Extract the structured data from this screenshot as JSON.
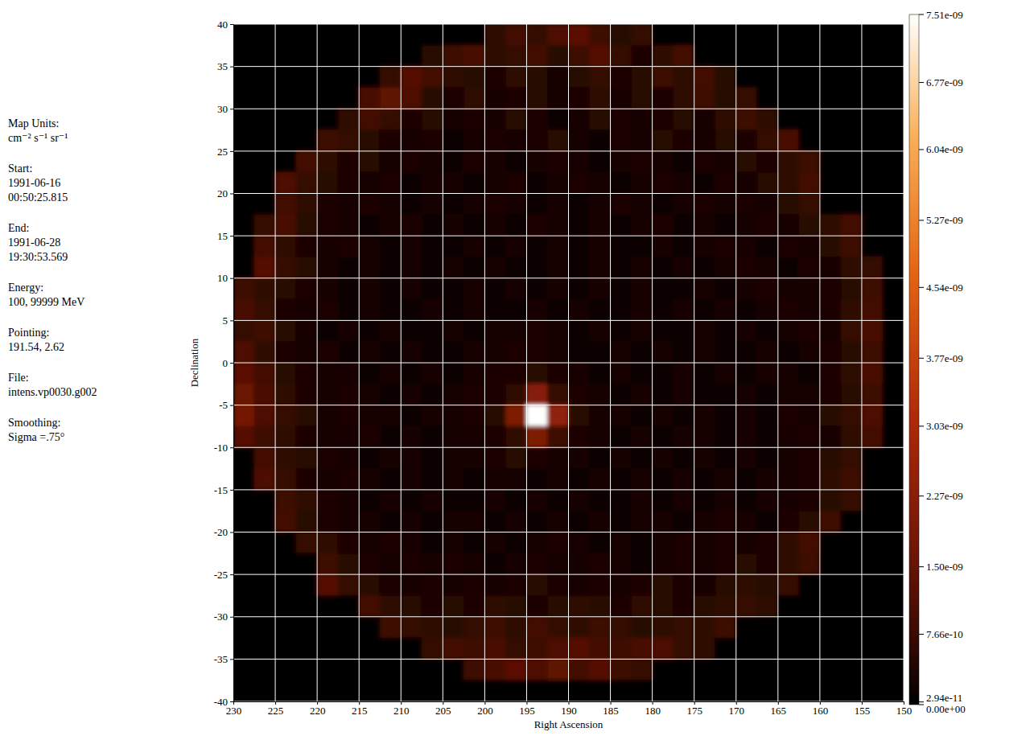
{
  "chart_data": {
    "type": "heatmap",
    "xlabel": "Right Ascension",
    "ylabel": "Declination",
    "xlim": [
      230,
      150
    ],
    "ylim": [
      -40,
      40
    ],
    "xticks": [
      230,
      225,
      220,
      215,
      210,
      205,
      200,
      195,
      190,
      185,
      180,
      175,
      170,
      165,
      160,
      155,
      150
    ],
    "yticks": [
      -40,
      -35,
      -30,
      -25,
      -20,
      -15,
      -10,
      -5,
      0,
      5,
      10,
      15,
      20,
      25,
      30,
      35,
      40
    ],
    "grid": true,
    "x": [
      228.75,
      226.25,
      223.75,
      221.25,
      218.75,
      216.25,
      213.75,
      211.25,
      208.75,
      206.25,
      203.75,
      201.25,
      198.75,
      196.25,
      193.75,
      191.25,
      188.75,
      186.25,
      183.75,
      181.25,
      178.75,
      176.25,
      173.75,
      171.25,
      168.75,
      166.25,
      163.75,
      161.25,
      158.75,
      156.25,
      153.75,
      151.25
    ],
    "y": [
      38.75,
      36.25,
      33.75,
      31.25,
      28.75,
      26.25,
      23.75,
      21.25,
      18.75,
      16.25,
      13.75,
      11.25,
      8.75,
      6.25,
      3.75,
      1.25,
      -1.25,
      -3.75,
      -6.25,
      -8.75,
      -11.25,
      -13.75,
      -16.25,
      -18.75,
      -21.25,
      -23.75,
      -26.25,
      -28.75,
      -31.25,
      -33.75,
      -36.25,
      -38.75
    ],
    "values": [
      [
        0,
        0,
        0,
        0,
        0,
        0,
        0,
        0,
        0,
        0,
        0,
        0,
        6e-10,
        9e-10,
        7e-10,
        1.1e-09,
        1.3e-09,
        8e-10,
        5e-10,
        7e-10,
        0,
        0,
        0,
        0,
        0,
        0,
        0,
        0,
        0,
        0,
        0,
        0
      ],
      [
        0,
        0,
        0,
        0,
        0,
        0,
        0,
        0,
        0,
        5e-10,
        8e-10,
        1e-09,
        6e-10,
        7e-10,
        9e-10,
        5e-10,
        8e-10,
        1.2e-09,
        7e-10,
        4e-10,
        6e-10,
        9e-10,
        0,
        0,
        0,
        0,
        0,
        0,
        0,
        0,
        0,
        0
      ],
      [
        0,
        0,
        0,
        0,
        0,
        0,
        0,
        7e-10,
        1.2e-09,
        9e-10,
        6e-10,
        5e-10,
        4e-10,
        6e-10,
        5e-10,
        3e-10,
        5e-10,
        7e-10,
        4e-10,
        5e-10,
        8e-10,
        6e-10,
        9e-10,
        5e-10,
        0,
        0,
        0,
        0,
        0,
        0,
        0,
        0
      ],
      [
        0,
        0,
        0,
        0,
        0,
        0,
        1e-09,
        1.4e-09,
        1.1e-09,
        5e-10,
        4e-10,
        6e-10,
        3e-10,
        4e-10,
        5e-10,
        3e-10,
        4e-10,
        6e-10,
        3e-10,
        5e-10,
        4e-10,
        6e-10,
        8e-10,
        5e-10,
        7e-10,
        0,
        0,
        0,
        0,
        0,
        0,
        0
      ],
      [
        0,
        0,
        0,
        0,
        0,
        6e-10,
        9e-10,
        7e-10,
        4e-10,
        5e-10,
        3e-10,
        4e-10,
        3e-10,
        5e-10,
        4e-10,
        2e-10,
        3e-10,
        5e-10,
        4e-10,
        3e-10,
        4e-10,
        5e-10,
        3e-10,
        6e-10,
        8e-10,
        6e-10,
        0,
        0,
        0,
        0,
        0,
        0
      ],
      [
        0,
        0,
        0,
        0,
        8e-10,
        7e-10,
        5e-10,
        4e-10,
        3e-10,
        4e-10,
        2e-10,
        3e-10,
        4e-10,
        3e-10,
        4e-10,
        5e-10,
        3e-10,
        2e-10,
        4e-10,
        3e-10,
        5e-10,
        4e-10,
        3e-10,
        5e-10,
        4e-10,
        7e-10,
        1e-09,
        0,
        0,
        0,
        0,
        0
      ],
      [
        0,
        0,
        0,
        9e-10,
        6e-10,
        4e-10,
        5e-10,
        3e-10,
        4e-10,
        3e-10,
        2e-10,
        4e-10,
        3e-10,
        2e-10,
        3e-10,
        4e-10,
        3e-10,
        2e-10,
        3e-10,
        4e-10,
        3e-10,
        2e-10,
        4e-10,
        3e-10,
        5e-10,
        4e-10,
        6e-10,
        8e-10,
        0,
        0,
        0,
        0
      ],
      [
        0,
        0,
        1.1e-09,
        7e-10,
        5e-10,
        4e-10,
        3e-10,
        4e-10,
        2e-10,
        3e-10,
        3e-10,
        2e-10,
        3e-10,
        4e-10,
        2e-10,
        3e-10,
        4e-10,
        3e-10,
        2e-10,
        3e-10,
        4e-10,
        3e-10,
        2e-10,
        4e-10,
        3e-10,
        5e-10,
        6e-10,
        9e-10,
        0,
        0,
        0,
        0
      ],
      [
        0,
        0,
        9e-10,
        6e-10,
        4e-10,
        3e-10,
        4e-10,
        3e-10,
        2e-10,
        3e-10,
        2e-10,
        3e-10,
        4e-10,
        3e-10,
        2e-10,
        3e-10,
        2e-10,
        3e-10,
        4e-10,
        3e-10,
        2e-10,
        3e-10,
        4e-10,
        3e-10,
        4e-10,
        3e-10,
        5e-10,
        7e-10,
        0,
        0,
        0,
        0
      ],
      [
        0,
        7e-10,
        1e-09,
        5e-10,
        4e-10,
        3e-10,
        2e-10,
        3e-10,
        4e-10,
        2e-10,
        3e-10,
        2e-10,
        3e-10,
        2e-10,
        4e-10,
        3e-10,
        2e-10,
        3e-10,
        2e-10,
        3e-10,
        4e-10,
        2e-10,
        3e-10,
        2e-10,
        3e-10,
        4e-10,
        3e-10,
        5e-10,
        6e-10,
        9e-10,
        0,
        0
      ],
      [
        0,
        9e-10,
        6e-10,
        4e-10,
        3e-10,
        4e-10,
        3e-10,
        2e-10,
        3e-10,
        2e-10,
        2e-10,
        3e-10,
        2e-10,
        3e-10,
        2e-10,
        3e-10,
        2e-10,
        3e-10,
        2e-10,
        2e-10,
        3e-10,
        2e-10,
        3e-10,
        4e-10,
        3e-10,
        2e-10,
        4e-10,
        3e-10,
        5e-10,
        8e-10,
        0,
        0
      ],
      [
        0,
        1.2e-09,
        7e-10,
        5e-10,
        3e-10,
        2e-10,
        3e-10,
        2e-10,
        3e-10,
        2e-10,
        3e-10,
        2e-10,
        3e-10,
        2e-10,
        2e-10,
        3e-10,
        2e-10,
        3e-10,
        2e-10,
        3e-10,
        2e-10,
        3e-10,
        2e-10,
        3e-10,
        4e-10,
        3e-10,
        2e-10,
        4e-10,
        3e-10,
        6e-10,
        7e-10,
        0
      ],
      [
        8e-10,
        6e-10,
        5e-10,
        4e-10,
        3e-10,
        2e-10,
        3e-10,
        2e-10,
        3e-10,
        2e-10,
        2e-10,
        3e-10,
        2e-10,
        3e-10,
        2e-10,
        3e-10,
        2e-10,
        3e-10,
        2e-10,
        3e-10,
        2e-10,
        2e-10,
        3e-10,
        2e-10,
        3e-10,
        4e-10,
        3e-10,
        3e-10,
        4e-10,
        5e-10,
        8e-10,
        0
      ],
      [
        1e-09,
        7e-10,
        4e-10,
        3e-10,
        4e-10,
        2e-10,
        3e-10,
        2e-10,
        2e-10,
        3e-10,
        2e-10,
        3e-10,
        2e-10,
        2e-10,
        3e-10,
        2e-10,
        3e-10,
        2e-10,
        2e-10,
        3e-10,
        2e-10,
        3e-10,
        2e-10,
        3e-10,
        2e-10,
        3e-10,
        4e-10,
        3e-10,
        4e-10,
        6e-10,
        9e-10,
        0
      ],
      [
        7e-10,
        8e-10,
        5e-10,
        3e-10,
        2e-10,
        3e-10,
        2e-10,
        3e-10,
        2e-10,
        2e-10,
        3e-10,
        2e-10,
        3e-10,
        3e-10,
        4e-10,
        3e-10,
        2e-10,
        3e-10,
        2e-10,
        3e-10,
        2e-10,
        2e-10,
        3e-10,
        2e-10,
        3e-10,
        2e-10,
        3e-10,
        4e-10,
        3e-10,
        7e-10,
        1e-09,
        0
      ],
      [
        1.1e-09,
        6e-10,
        4e-10,
        3e-10,
        4e-10,
        2e-10,
        3e-10,
        2e-10,
        3e-10,
        2e-10,
        2e-10,
        3e-10,
        3e-10,
        4e-10,
        4e-10,
        3e-10,
        2e-10,
        2e-10,
        3e-10,
        2e-10,
        3e-10,
        2e-10,
        3e-10,
        2e-10,
        2e-10,
        3e-10,
        2e-10,
        3e-10,
        4e-10,
        5e-10,
        8e-10,
        0
      ],
      [
        1.3e-09,
        9e-10,
        5e-10,
        4e-10,
        3e-10,
        3e-10,
        2e-10,
        3e-10,
        2e-10,
        3e-10,
        2e-10,
        3e-10,
        4e-10,
        4e-10,
        5e-10,
        4e-10,
        3e-10,
        2e-10,
        3e-10,
        2e-10,
        2e-10,
        3e-10,
        2e-10,
        3e-10,
        2e-10,
        3e-10,
        3e-10,
        2e-10,
        4e-10,
        6e-10,
        1e-09,
        0
      ],
      [
        1.6e-09,
        1e-09,
        6e-10,
        4e-10,
        3e-10,
        4e-10,
        3e-10,
        2e-10,
        3e-10,
        2e-10,
        3e-10,
        4e-10,
        4e-10,
        6e-10,
        2.2e-09,
        7e-10,
        4e-10,
        3e-10,
        2e-10,
        3e-10,
        2e-10,
        3e-10,
        2e-10,
        2e-10,
        3e-10,
        2e-10,
        3e-10,
        3e-10,
        4e-10,
        5e-10,
        8e-10,
        0
      ],
      [
        1.8e-09,
        1.1e-09,
        7e-10,
        5e-10,
        3e-10,
        4e-10,
        3e-10,
        3e-10,
        2e-10,
        3e-10,
        3e-10,
        4e-10,
        5e-10,
        2e-09,
        7.51e-09,
        2.4e-09,
        5e-10,
        3e-10,
        3e-10,
        2e-10,
        3e-10,
        2e-10,
        3e-10,
        2e-10,
        3e-10,
        2e-10,
        4e-10,
        3e-10,
        5e-10,
        7e-10,
        1.1e-09,
        0
      ],
      [
        1.2e-09,
        8e-10,
        6e-10,
        4e-10,
        3e-10,
        3e-10,
        4e-10,
        2e-10,
        3e-10,
        2e-10,
        3e-10,
        3e-10,
        4e-10,
        6e-10,
        2e-09,
        8e-10,
        4e-10,
        3e-10,
        2e-10,
        3e-10,
        2e-10,
        3e-10,
        3e-10,
        2e-10,
        3e-10,
        2e-10,
        3e-10,
        4e-10,
        3e-10,
        6e-10,
        9e-10,
        0
      ],
      [
        0,
        9e-10,
        6e-10,
        5e-10,
        4e-10,
        3e-10,
        2e-10,
        3e-10,
        3e-10,
        2e-10,
        3e-10,
        3e-10,
        4e-10,
        5e-10,
        4e-10,
        3e-10,
        3e-10,
        2e-10,
        3e-10,
        2e-10,
        3e-10,
        2e-10,
        3e-10,
        2e-10,
        3e-10,
        2e-10,
        3e-10,
        4e-10,
        5e-10,
        7e-10,
        0,
        0
      ],
      [
        0,
        1.1e-09,
        7e-10,
        4e-10,
        3e-10,
        4e-10,
        3e-10,
        2e-10,
        3e-10,
        2e-10,
        3e-10,
        2e-10,
        3e-10,
        3e-10,
        2e-10,
        3e-10,
        2e-10,
        3e-10,
        2e-10,
        3e-10,
        2e-10,
        3e-10,
        2e-10,
        3e-10,
        2e-10,
        3e-10,
        3e-10,
        4e-10,
        6e-10,
        8e-10,
        0,
        0
      ],
      [
        0,
        0,
        8e-10,
        6e-10,
        4e-10,
        3e-10,
        2e-10,
        3e-10,
        2e-10,
        3e-10,
        2e-10,
        2e-10,
        3e-10,
        2e-10,
        3e-10,
        2e-10,
        3e-10,
        2e-10,
        2e-10,
        3e-10,
        2e-10,
        3e-10,
        2e-10,
        3e-10,
        2e-10,
        3e-10,
        3e-10,
        4e-10,
        5e-10,
        7e-10,
        0,
        0
      ],
      [
        0,
        0,
        9e-10,
        5e-10,
        4e-10,
        3e-10,
        3e-10,
        2e-10,
        3e-10,
        2e-10,
        3e-10,
        3e-10,
        2e-10,
        3e-10,
        2e-10,
        3e-10,
        2e-10,
        3e-10,
        2e-10,
        3e-10,
        3e-10,
        2e-10,
        3e-10,
        4e-10,
        3e-10,
        2e-10,
        4e-10,
        5e-10,
        8e-10,
        0,
        0,
        0
      ],
      [
        0,
        0,
        0,
        7e-10,
        6e-10,
        4e-10,
        3e-10,
        4e-10,
        3e-10,
        2e-10,
        3e-10,
        2e-10,
        3e-10,
        2e-10,
        3e-10,
        4e-10,
        3e-10,
        2e-10,
        3e-10,
        2e-10,
        3e-10,
        4e-10,
        3e-10,
        4e-10,
        3e-10,
        4e-10,
        6e-10,
        9e-10,
        0,
        0,
        0,
        0
      ],
      [
        0,
        0,
        0,
        0,
        8e-10,
        5e-10,
        4e-10,
        3e-10,
        4e-10,
        3e-10,
        4e-10,
        3e-10,
        2e-10,
        3e-10,
        4e-10,
        3e-10,
        3e-10,
        4e-10,
        3e-10,
        2e-10,
        3e-10,
        4e-10,
        3e-10,
        4e-10,
        5e-10,
        4e-10,
        6e-10,
        8e-10,
        0,
        0,
        0,
        0
      ],
      [
        0,
        0,
        0,
        0,
        1.2e-09,
        7e-10,
        5e-10,
        4e-10,
        3e-10,
        4e-10,
        3e-10,
        4e-10,
        3e-10,
        4e-10,
        5e-10,
        4e-10,
        3e-10,
        4e-10,
        3e-10,
        4e-10,
        5e-10,
        4e-10,
        3e-10,
        5e-10,
        6e-10,
        5e-10,
        7e-10,
        0,
        0,
        0,
        0,
        0
      ],
      [
        0,
        0,
        0,
        0,
        0,
        0,
        9e-10,
        6e-10,
        5e-10,
        4e-10,
        5e-10,
        4e-10,
        6e-10,
        5e-10,
        4e-10,
        5e-10,
        6e-10,
        5e-10,
        4e-10,
        6e-10,
        5e-10,
        4e-10,
        5e-10,
        6e-10,
        7e-10,
        6e-10,
        0,
        0,
        0,
        0,
        0,
        0
      ],
      [
        0,
        0,
        0,
        0,
        0,
        0,
        0,
        8e-10,
        7e-10,
        6e-10,
        5e-10,
        7e-10,
        8e-10,
        6e-10,
        9e-10,
        7e-10,
        6e-10,
        8e-10,
        7e-10,
        5e-10,
        6e-10,
        7e-10,
        6e-10,
        8e-10,
        0,
        0,
        0,
        0,
        0,
        0,
        0,
        0
      ],
      [
        0,
        0,
        0,
        0,
        0,
        0,
        0,
        0,
        0,
        7e-10,
        9e-10,
        8e-10,
        1e-09,
        7e-10,
        8e-10,
        1.1e-09,
        1.2e-09,
        9e-10,
        8e-10,
        1e-09,
        1.1e-09,
        7e-10,
        6e-10,
        0,
        0,
        0,
        0,
        0,
        0,
        0,
        0,
        0
      ],
      [
        0,
        0,
        0,
        0,
        0,
        0,
        0,
        0,
        0,
        0,
        0,
        8e-10,
        1e-09,
        1.3e-09,
        1.1e-09,
        1.4e-09,
        9e-10,
        1.2e-09,
        8e-10,
        7e-10,
        0,
        0,
        0,
        0,
        0,
        0,
        0,
        0,
        0,
        0,
        0,
        0
      ],
      [
        0,
        0,
        0,
        0,
        0,
        0,
        0,
        0,
        0,
        0,
        0,
        0,
        0,
        0,
        0,
        0,
        0,
        0,
        0,
        0,
        0,
        0,
        0,
        0,
        0,
        0,
        0,
        0,
        0,
        0,
        0,
        0
      ]
    ],
    "color_range": [
      0,
      7.51e-09
    ],
    "color_ticks": [
      {
        "value": 0,
        "label": "0.00e+00"
      },
      {
        "value": 2.94e-11,
        "label": "2.94e-11"
      },
      {
        "value": 7.66e-10,
        "label": "7.66e-10"
      },
      {
        "value": 1.5e-09,
        "label": "1.50e-09"
      },
      {
        "value": 2.27e-09,
        "label": "2.27e-09"
      },
      {
        "value": 3.03e-09,
        "label": "3.03e-09"
      },
      {
        "value": 3.77e-09,
        "label": "3.77e-09"
      },
      {
        "value": 4.54e-09,
        "label": "4.54e-09"
      },
      {
        "value": 5.27e-09,
        "label": "5.27e-09"
      },
      {
        "value": 6.04e-09,
        "label": "6.04e-09"
      },
      {
        "value": 6.77e-09,
        "label": "6.77e-09"
      },
      {
        "value": 7.51e-09,
        "label": "7.51e-09"
      }
    ],
    "annotations": [
      {
        "heading": "Map Units:",
        "lines": [
          "cm⁻² s⁻¹ sr⁻¹"
        ]
      },
      {
        "heading": "Start:",
        "lines": [
          "1991-06-16",
          "00:50:25.815"
        ]
      },
      {
        "heading": "End:",
        "lines": [
          "1991-06-28",
          "19:30:53.569"
        ]
      },
      {
        "heading": "Energy:",
        "lines": [
          "100, 99999 MeV"
        ]
      },
      {
        "heading": "Pointing:",
        "lines": [
          "191.54, 2.62"
        ]
      },
      {
        "heading": "File:",
        "lines": [
          "intens.vp0030.g002"
        ]
      },
      {
        "heading": "Smoothing:",
        "lines": [
          "Sigma =.75°"
        ]
      }
    ]
  }
}
